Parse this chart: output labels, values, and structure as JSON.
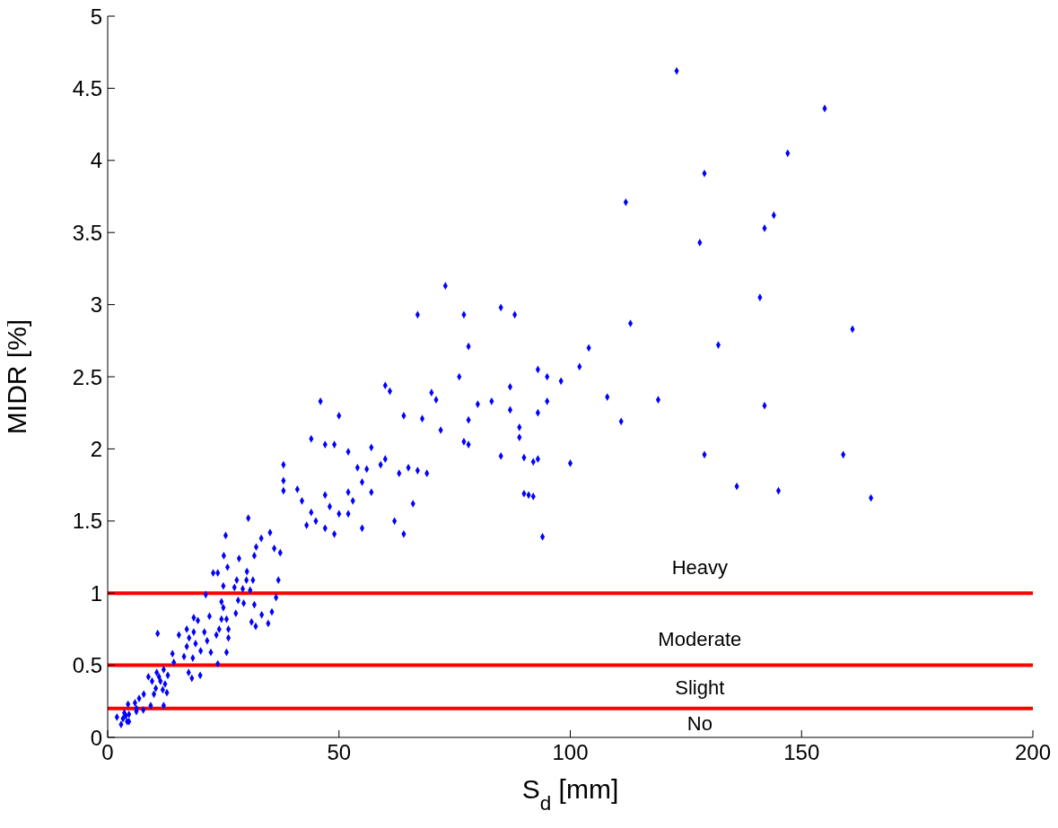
{
  "chart_data": {
    "type": "scatter",
    "xlabel": "S$_{d}$ [mm]",
    "ylabel": "MIDR [%]",
    "xlim": [
      0,
      200
    ],
    "xticks": [
      0,
      50,
      100,
      150,
      200
    ],
    "ylim": [
      0,
      5
    ],
    "yticks": [
      0,
      0.5,
      1,
      1.5,
      2,
      2.5,
      3,
      3.5,
      4,
      4.5,
      5
    ],
    "grid": false,
    "legend": false,
    "marker": "diamond",
    "series": [
      {
        "color": "#0000ff",
        "x": [
          123,
          155,
          147,
          129,
          112,
          144,
          142,
          128,
          73,
          85,
          67,
          77,
          88,
          141,
          113,
          161,
          132,
          78,
          104,
          102,
          93,
          95,
          76,
          98,
          60,
          87,
          61,
          70,
          83,
          71,
          108,
          119,
          95,
          80,
          142,
          87,
          93,
          46,
          64,
          68,
          50,
          111,
          78,
          89,
          44,
          47,
          49,
          78,
          77,
          89,
          72,
          57,
          52,
          129,
          159,
          85,
          90,
          92,
          93,
          100,
          60,
          38,
          54,
          56,
          59,
          63,
          65,
          67,
          69,
          38,
          41,
          47,
          52,
          55,
          90,
          91,
          92,
          136,
          145,
          165,
          38,
          42,
          44,
          45,
          48,
          50,
          53,
          57,
          62,
          64,
          66,
          43,
          47,
          49,
          52,
          55,
          94,
          30.4,
          25.5,
          35.1,
          33.2,
          32.1,
          25.1,
          28.4,
          31.7,
          25.9,
          30.1,
          22.8,
          23.8,
          27.9,
          30,
          31.4,
          36,
          37.3,
          36.9,
          25,
          27.4,
          29.2,
          30.8,
          36.4,
          21.2,
          24.6,
          28.2,
          29.4,
          31.7,
          25,
          27.7,
          22,
          35.5,
          33.3,
          31.1,
          32,
          34.7,
          24.6,
          25.7,
          18.6,
          19.5,
          17.1,
          24.1,
          26.1,
          18.6,
          20.9,
          10.8,
          15.4,
          23.5,
          26.1,
          17.6,
          21.5,
          19,
          17.1,
          20.1,
          22.3,
          14,
          16.5,
          25.7,
          18.4,
          14.3,
          23.8,
          17.5,
          18.2,
          20,
          12.1,
          10.6,
          8.8,
          11.1,
          13,
          9.6,
          11.4,
          12.4,
          10.4,
          11.9,
          7.8,
          10,
          12.8,
          6.8,
          5.9,
          4.4,
          9.3,
          12.1,
          6.2,
          7.7,
          3.6,
          4.6,
          6.2,
          2,
          3.3,
          4.2,
          2.9,
          4.6,
          3.9
        ],
        "values": [
          4.62,
          4.36,
          4.05,
          3.91,
          3.71,
          3.62,
          3.53,
          3.43,
          3.13,
          2.98,
          2.93,
          2.93,
          2.93,
          3.05,
          2.87,
          2.83,
          2.72,
          2.71,
          2.7,
          2.57,
          2.55,
          2.5,
          2.5,
          2.47,
          2.44,
          2.43,
          2.4,
          2.39,
          2.33,
          2.34,
          2.36,
          2.34,
          2.33,
          2.31,
          2.3,
          2.27,
          2.25,
          2.33,
          2.23,
          2.21,
          2.23,
          2.19,
          2.2,
          2.15,
          2.07,
          2.03,
          2.03,
          2.03,
          2.05,
          2.08,
          2.13,
          2.01,
          1.98,
          1.96,
          1.96,
          1.95,
          1.94,
          1.91,
          1.93,
          1.9,
          1.93,
          1.89,
          1.87,
          1.86,
          1.89,
          1.83,
          1.87,
          1.85,
          1.83,
          1.78,
          1.72,
          1.68,
          1.7,
          1.77,
          1.69,
          1.68,
          1.67,
          1.74,
          1.71,
          1.66,
          1.71,
          1.64,
          1.56,
          1.5,
          1.6,
          1.55,
          1.64,
          1.7,
          1.5,
          1.41,
          1.62,
          1.47,
          1.45,
          1.41,
          1.55,
          1.45,
          1.39,
          1.52,
          1.4,
          1.42,
          1.38,
          1.32,
          1.26,
          1.24,
          1.26,
          1.18,
          1.15,
          1.14,
          1.14,
          1.09,
          1.09,
          1.09,
          1.31,
          1.28,
          1.09,
          1.05,
          1.04,
          1.03,
          1.02,
          0.97,
          0.99,
          0.94,
          0.95,
          0.93,
          0.92,
          0.9,
          0.86,
          0.84,
          0.87,
          0.85,
          0.8,
          0.77,
          0.79,
          0.82,
          0.82,
          0.83,
          0.81,
          0.75,
          0.75,
          0.75,
          0.73,
          0.73,
          0.72,
          0.71,
          0.71,
          0.69,
          0.69,
          0.67,
          0.65,
          0.63,
          0.6,
          0.59,
          0.58,
          0.56,
          0.59,
          0.55,
          0.52,
          0.51,
          0.45,
          0.41,
          0.43,
          0.47,
          0.45,
          0.42,
          0.42,
          0.43,
          0.39,
          0.39,
          0.37,
          0.34,
          0.33,
          0.3,
          0.3,
          0.31,
          0.27,
          0.24,
          0.23,
          0.22,
          0.22,
          0.2,
          0.19,
          0.17,
          0.16,
          0.18,
          0.14,
          0.13,
          0.11,
          0.09,
          0.11,
          0.15
        ]
      }
    ],
    "ref_lines": [
      {
        "axis": "y",
        "value": 1,
        "color": "#ff0000"
      },
      {
        "axis": "y",
        "value": 0.5,
        "color": "#ff0000"
      },
      {
        "axis": "y",
        "value": 0.2,
        "color": "#ff0000"
      }
    ],
    "annotations": [
      "Heavy",
      "Moderate",
      "Slight",
      "No"
    ]
  }
}
